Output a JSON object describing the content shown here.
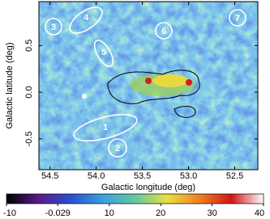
{
  "chart_data": {
    "type": "image",
    "xlabel": "Galactic longitude (deg)",
    "ylabel": "Galactic latitude (deg)",
    "xlim": [
      54.62,
      52.25
    ],
    "xticks": [
      54.5,
      {
        "value": 54,
        "label": "54.0"
      },
      53.5,
      {
        "value": 53,
        "label": "53.0"
      },
      52.5
    ],
    "ylim": [
      -0.83,
      0.97
    ],
    "yticks": [
      0.5,
      {
        "value": 0,
        "label": "0.0"
      },
      -0.5
    ],
    "colorbar": {
      "lim": [
        -10,
        40
      ],
      "ticks": [
        -10,
        -0.029,
        10,
        20,
        30,
        40
      ],
      "colormap": [
        "#000000",
        "#5a1a8a",
        "#2a4fd0",
        "#3aa0e0",
        "#60c8a0",
        "#e8e040",
        "#f08020",
        "#d01818",
        "#ffffff"
      ]
    },
    "regions": [
      "1",
      "2",
      "3",
      "4",
      "5",
      "6",
      "7"
    ]
  }
}
